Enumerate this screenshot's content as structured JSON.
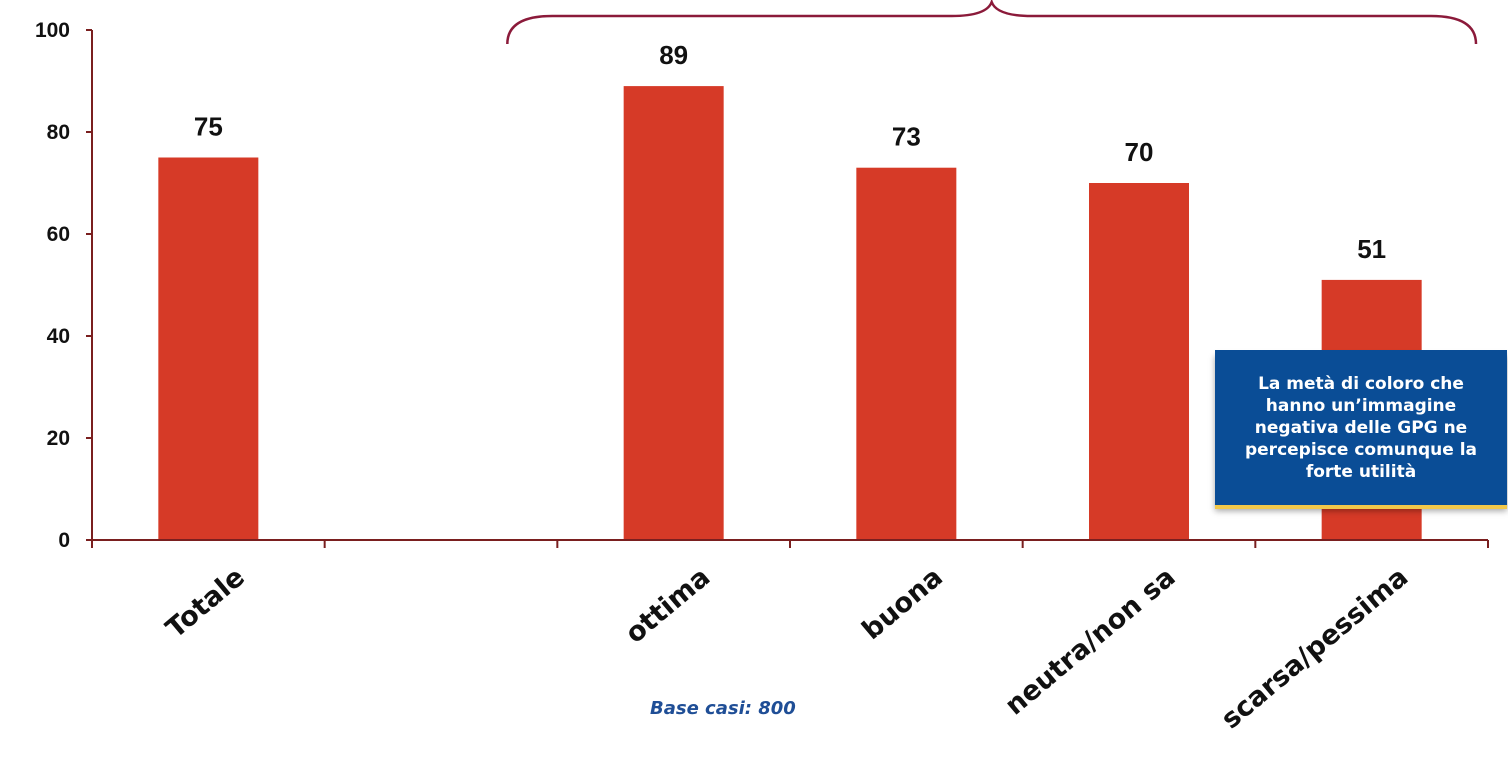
{
  "chart_data": {
    "type": "bar",
    "categories": [
      "Totale",
      "",
      "ottima",
      "buona",
      "neutra/non sa",
      "scarsa/pessima"
    ],
    "values": [
      75,
      null,
      89,
      73,
      70,
      51
    ],
    "data_labels": [
      "75",
      "",
      "89",
      "73",
      "70",
      "51"
    ],
    "ylim": [
      0,
      100
    ],
    "yticks": [
      0,
      20,
      40,
      60,
      80,
      100
    ],
    "bar_color": "#d63a27",
    "axis_color": "#7a1f1f",
    "brace_color": "#8b1a3a",
    "grid": false
  },
  "callout": {
    "text": "La metà di coloro che hanno un’immagine negativa delle GPG ne percepisce comunque la forte utilità",
    "color": "#0a4d96"
  },
  "footnote": "Base casi: 800"
}
